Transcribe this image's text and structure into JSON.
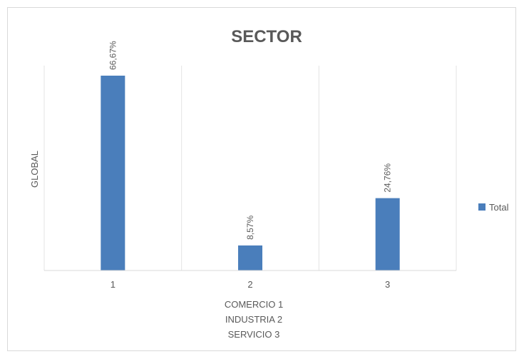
{
  "chart_data": {
    "type": "bar",
    "title": "SECTOR",
    "categories": [
      "1",
      "2",
      "3"
    ],
    "series": [
      {
        "name": "Total",
        "values": [
          66.67,
          8.57,
          24.76
        ],
        "labels": [
          "66,67%",
          "8,57%",
          "24,76%"
        ],
        "color": "#4a7ebb"
      }
    ],
    "ylabel": "GLOBAL",
    "xlabel_lines": [
      "COMERCIO 1",
      "INDUSTRIA 2",
      "SERVICIO 3"
    ],
    "ylim": [
      0,
      66.67
    ],
    "grid": "vertical category separators",
    "legend_position": "right"
  }
}
